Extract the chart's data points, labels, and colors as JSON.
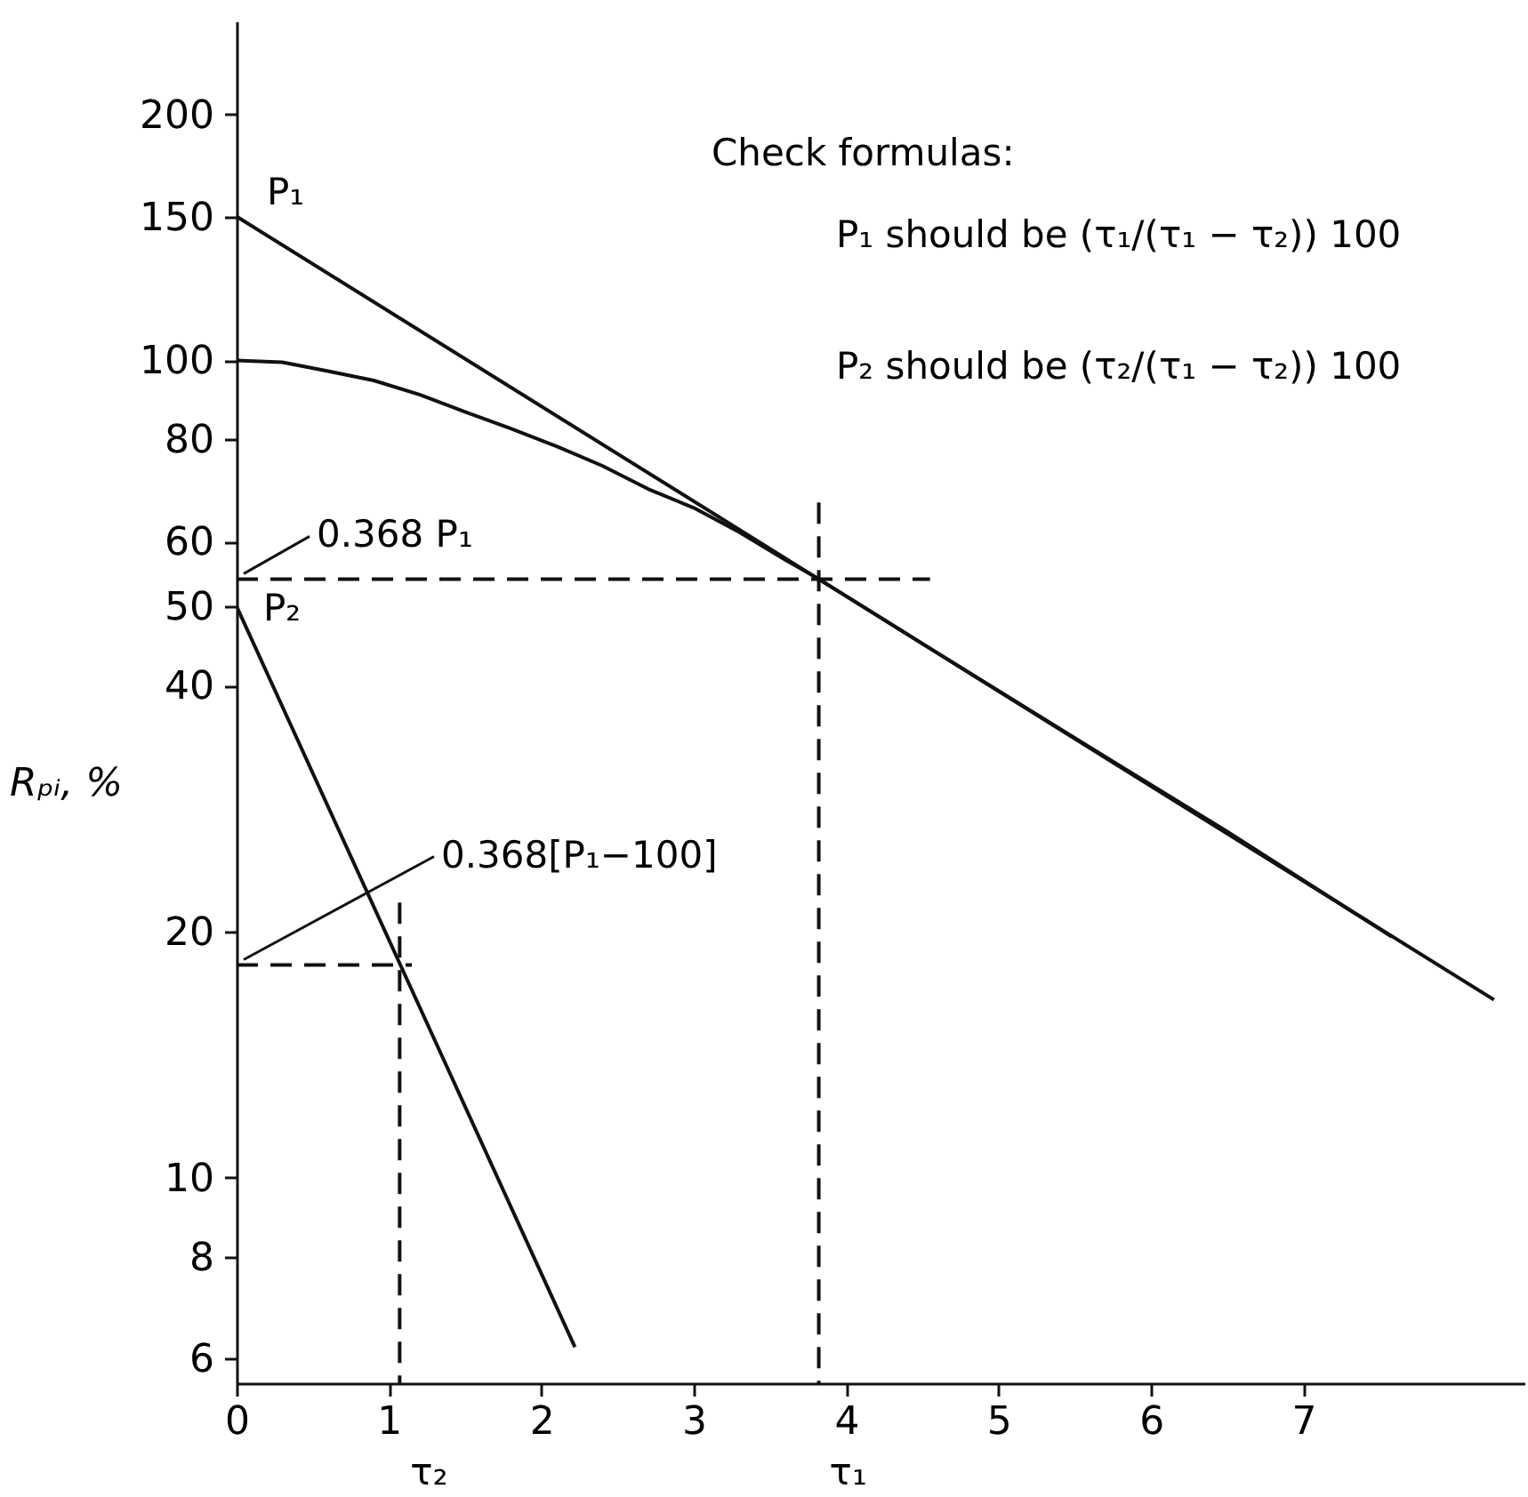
{
  "chart_data": {
    "type": "line",
    "ylabel": "Rₚᵢ, %",
    "log": "y",
    "xlim": [
      0,
      8.45
    ],
    "ylim": [
      5.6,
      260
    ],
    "xticks": [
      0,
      1,
      2,
      3,
      4,
      5,
      6,
      7
    ],
    "yticks": [
      6,
      8,
      10,
      20,
      40,
      50,
      60,
      80,
      100,
      150,
      200
    ],
    "series": [
      {
        "color": "#111111",
        "x": [
          0,
          8.25
        ],
        "values": [
          150,
          16.5
        ]
      },
      {
        "color": "#111111",
        "x": [
          0,
          0.3,
          0.6,
          0.9,
          1.2,
          1.5,
          1.8,
          2.1,
          2.4,
          2.7,
          3.0,
          3.3,
          3.6,
          3.82,
          4.5,
          5.5,
          6.5,
          7.58
        ],
        "values": [
          100,
          99.5,
          97,
          94.5,
          90.8,
          86.5,
          82.5,
          78.5,
          74.3,
          69.6,
          66,
          61.6,
          57,
          54,
          45,
          34.5,
          26.5,
          19.7
        ]
      },
      {
        "color": "#111111",
        "x": [
          0,
          2.22
        ],
        "values": [
          50,
          6.2
        ]
      },
      {
        "color": "#111111",
        "line_style": "dashed",
        "x": [
          0,
          4.55
        ],
        "values": [
          54,
          54
        ]
      },
      {
        "color": "#111111",
        "line_style": "dashed",
        "x": [
          3.82,
          3.82
        ],
        "values": [
          67,
          5.6
        ]
      },
      {
        "color": "#111111",
        "line_style": "dashed",
        "x": [
          0,
          1.15
        ],
        "values": [
          18.2,
          18.2
        ]
      },
      {
        "color": "#111111",
        "line_style": "dashed",
        "x": [
          1.07,
          1.07
        ],
        "values": [
          21.7,
          5.6
        ]
      }
    ],
    "annotations": [
      "Check formulas:",
      "P₁ should be (τ₁/(τ₁ − τ₂)) 100",
      "P₂ should be (τ₂/(τ₁ − τ₂)) 100",
      {
        "text": "P₁",
        "x": 0,
        "y": 150
      },
      {
        "text": "P₂",
        "x": 0,
        "y": 50
      },
      {
        "text": "0.368 P₁",
        "x": 0,
        "y": 54
      },
      {
        "text": "0.368[P₁−100]",
        "x": 0,
        "y": 18.2
      },
      {
        "text": "τ₁",
        "x": 3.82,
        "y": 5.6
      },
      {
        "text": "τ₂",
        "x": 1.07,
        "y": 5.6
      }
    ]
  }
}
